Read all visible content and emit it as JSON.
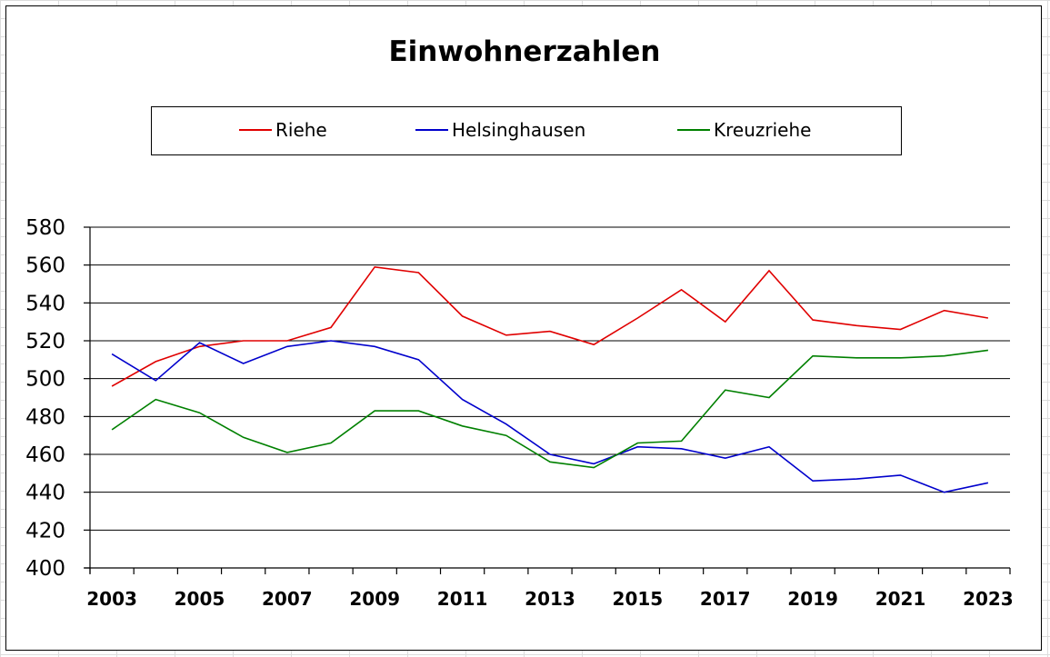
{
  "chart_data": {
    "type": "line",
    "title": "Einwohnerzahlen",
    "xlabel": "",
    "ylabel": "",
    "x": [
      2003,
      2004,
      2005,
      2006,
      2007,
      2008,
      2009,
      2010,
      2011,
      2012,
      2013,
      2014,
      2015,
      2016,
      2017,
      2018,
      2019,
      2020,
      2021,
      2022,
      2023
    ],
    "x_tick_labels": [
      "2003",
      "2005",
      "2007",
      "2009",
      "2011",
      "2013",
      "2015",
      "2017",
      "2019",
      "2021",
      "2023"
    ],
    "y_ticks": [
      400,
      420,
      440,
      460,
      480,
      500,
      520,
      540,
      560,
      580
    ],
    "ylim": [
      400,
      580
    ],
    "grid": true,
    "legend_position": "top",
    "series": [
      {
        "name": "Riehe",
        "color": "#e00000",
        "values": [
          496,
          509,
          517,
          520,
          520,
          527,
          559,
          556,
          533,
          523,
          525,
          518,
          532,
          547,
          530,
          557,
          531,
          528,
          526,
          536,
          532
        ]
      },
      {
        "name": "Helsinghausen",
        "color": "#0000cc",
        "values": [
          513,
          499,
          519,
          508,
          517,
          520,
          517,
          510,
          489,
          476,
          460,
          455,
          464,
          463,
          458,
          464,
          446,
          447,
          449,
          440,
          445
        ]
      },
      {
        "name": "Kreuzriehe",
        "color": "#008000",
        "values": [
          473,
          489,
          482,
          469,
          461,
          466,
          483,
          483,
          475,
          470,
          456,
          453,
          466,
          467,
          494,
          490,
          512,
          511,
          511,
          512,
          515
        ]
      }
    ]
  }
}
